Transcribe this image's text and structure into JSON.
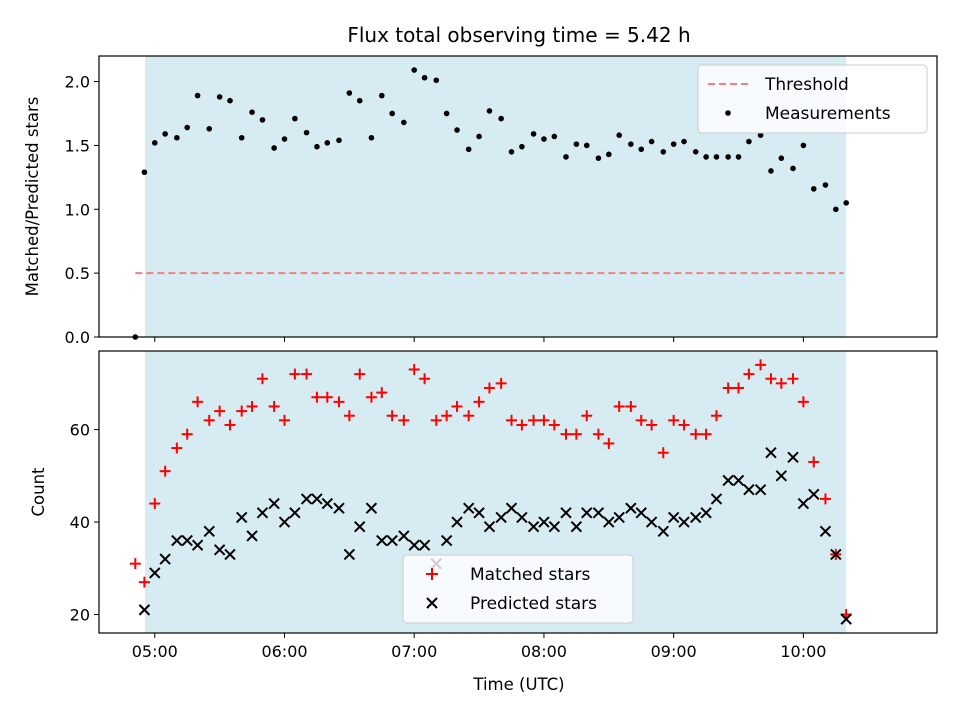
{
  "colors": {
    "background": "#ffffff",
    "observing_span": "#add8e6",
    "threshold": "#f08080",
    "measurements": "#000000",
    "matched": "#ff0000",
    "predicted": "#000000"
  },
  "chart_data": {
    "type": "scatter",
    "title": "Flux total observing time = 5.42 h",
    "xlabel": "Time (UTC)",
    "x_ticks": [
      "05:00",
      "06:00",
      "07:00",
      "08:00",
      "09:00",
      "10:00"
    ],
    "x_tick_hours": [
      5,
      6,
      7,
      8,
      9,
      10
    ],
    "xlim": [
      4.57,
      11.03
    ],
    "observing_span_hours": [
      4.925,
      10.33
    ],
    "top": {
      "ylabel": "Matched/Predicted stars",
      "ylim": [
        0,
        2.2
      ],
      "y_ticks": [
        "0.0",
        "0.5",
        "1.0",
        "1.5",
        "2.0"
      ],
      "y_tick_values": [
        0,
        0.5,
        1.0,
        1.5,
        2.0
      ],
      "threshold": {
        "label": "Threshold",
        "value": 0.5,
        "x_range": [
          4.85,
          10.31
        ]
      },
      "legend": [
        "Threshold",
        "Measurements"
      ],
      "measurements": {
        "name": "Measurements",
        "x": [
          4.85,
          4.92,
          5.0,
          5.08,
          5.17,
          5.25,
          5.33,
          5.42,
          5.5,
          5.58,
          5.67,
          5.75,
          5.83,
          5.92,
          6.0,
          6.08,
          6.17,
          6.25,
          6.33,
          6.42,
          6.5,
          6.58,
          6.67,
          6.75,
          6.83,
          6.92,
          7.0,
          7.08,
          7.17,
          7.25,
          7.33,
          7.42,
          7.5,
          7.58,
          7.67,
          7.75,
          7.83,
          7.92,
          8.0,
          8.08,
          8.17,
          8.25,
          8.33,
          8.42,
          8.5,
          8.58,
          8.67,
          8.75,
          8.83,
          8.92,
          9.0,
          9.08,
          9.17,
          9.25,
          9.33,
          9.42,
          9.5,
          9.58,
          9.67,
          9.75,
          9.83,
          9.92,
          10.0,
          10.08,
          10.17,
          10.25,
          10.33
        ],
        "y": [
          0.0,
          1.29,
          1.52,
          1.59,
          1.56,
          1.64,
          1.89,
          1.63,
          1.88,
          1.85,
          1.56,
          1.76,
          1.7,
          1.48,
          1.55,
          1.71,
          1.6,
          1.49,
          1.52,
          1.54,
          1.91,
          1.85,
          1.56,
          1.89,
          1.75,
          1.68,
          2.09,
          2.03,
          2.01,
          1.75,
          1.62,
          1.47,
          1.57,
          1.77,
          1.71,
          1.45,
          1.49,
          1.59,
          1.55,
          1.57,
          1.41,
          1.51,
          1.5,
          1.4,
          1.43,
          1.58,
          1.51,
          1.47,
          1.53,
          1.45,
          1.51,
          1.53,
          1.45,
          1.41,
          1.41,
          1.41,
          1.41,
          1.53,
          1.58,
          1.3,
          1.4,
          1.32,
          1.5,
          1.16,
          1.19,
          1.0,
          1.05
        ]
      }
    },
    "bottom": {
      "ylabel": "Count",
      "ylim": [
        16,
        77
      ],
      "y_ticks": [
        "20",
        "40",
        "60"
      ],
      "y_tick_values": [
        20,
        40,
        60
      ],
      "legend": [
        "Matched stars",
        "Predicted stars"
      ],
      "series": [
        {
          "name": "Matched stars",
          "marker": "+",
          "x": [
            4.85,
            4.92,
            5.0,
            5.08,
            5.17,
            5.25,
            5.33,
            5.42,
            5.5,
            5.58,
            5.67,
            5.75,
            5.83,
            5.92,
            6.0,
            6.08,
            6.17,
            6.25,
            6.33,
            6.42,
            6.5,
            6.58,
            6.67,
            6.75,
            6.83,
            6.92,
            7.0,
            7.08,
            7.17,
            7.25,
            7.33,
            7.42,
            7.5,
            7.58,
            7.67,
            7.75,
            7.83,
            7.92,
            8.0,
            8.08,
            8.17,
            8.25,
            8.33,
            8.42,
            8.5,
            8.58,
            8.67,
            8.75,
            8.83,
            8.92,
            9.0,
            9.08,
            9.17,
            9.25,
            9.33,
            9.42,
            9.5,
            9.58,
            9.67,
            9.75,
            9.83,
            9.92,
            10.0,
            10.08,
            10.17,
            10.25,
            10.33
          ],
          "values": [
            31,
            27,
            44,
            51,
            56,
            59,
            66,
            62,
            64,
            61,
            64,
            65,
            71,
            65,
            62,
            72,
            72,
            67,
            67,
            66,
            63,
            72,
            67,
            68,
            63,
            62,
            73,
            71,
            62,
            63,
            65,
            63,
            66,
            69,
            70,
            62,
            61,
            62,
            62,
            61,
            59,
            59,
            63,
            59,
            57,
            65,
            65,
            62,
            61,
            55,
            62,
            61,
            59,
            59,
            63,
            69,
            69,
            72,
            74,
            71,
            70,
            71,
            66,
            53,
            45,
            33,
            20
          ]
        },
        {
          "name": "Predicted stars",
          "marker": "x",
          "x": [
            4.85,
            4.92,
            5.0,
            5.08,
            5.17,
            5.25,
            5.33,
            5.42,
            5.5,
            5.58,
            5.67,
            5.75,
            5.83,
            5.92,
            6.0,
            6.08,
            6.17,
            6.25,
            6.33,
            6.42,
            6.5,
            6.58,
            6.67,
            6.75,
            6.83,
            6.92,
            7.0,
            7.08,
            7.17,
            7.25,
            7.33,
            7.42,
            7.5,
            7.58,
            7.67,
            7.75,
            7.83,
            7.92,
            8.0,
            8.08,
            8.17,
            8.25,
            8.33,
            8.42,
            8.5,
            8.58,
            8.67,
            8.75,
            8.83,
            8.92,
            9.0,
            9.08,
            9.17,
            9.25,
            9.33,
            9.42,
            9.5,
            9.58,
            9.67,
            9.75,
            9.83,
            9.92,
            10.0,
            10.08,
            10.17,
            10.25,
            10.33
          ],
          "values": [
            null,
            21,
            29,
            32,
            36,
            36,
            35,
            38,
            34,
            33,
            41,
            37,
            42,
            44,
            40,
            42,
            45,
            45,
            44,
            43,
            33,
            39,
            43,
            36,
            36,
            37,
            35,
            35,
            31,
            36,
            40,
            43,
            42,
            39,
            41,
            43,
            41,
            39,
            40,
            39,
            42,
            39,
            42,
            42,
            40,
            41,
            43,
            42,
            40,
            38,
            41,
            40,
            41,
            42,
            45,
            49,
            49,
            47,
            47,
            55,
            50,
            54,
            44,
            46,
            38,
            33,
            19
          ]
        }
      ]
    }
  }
}
